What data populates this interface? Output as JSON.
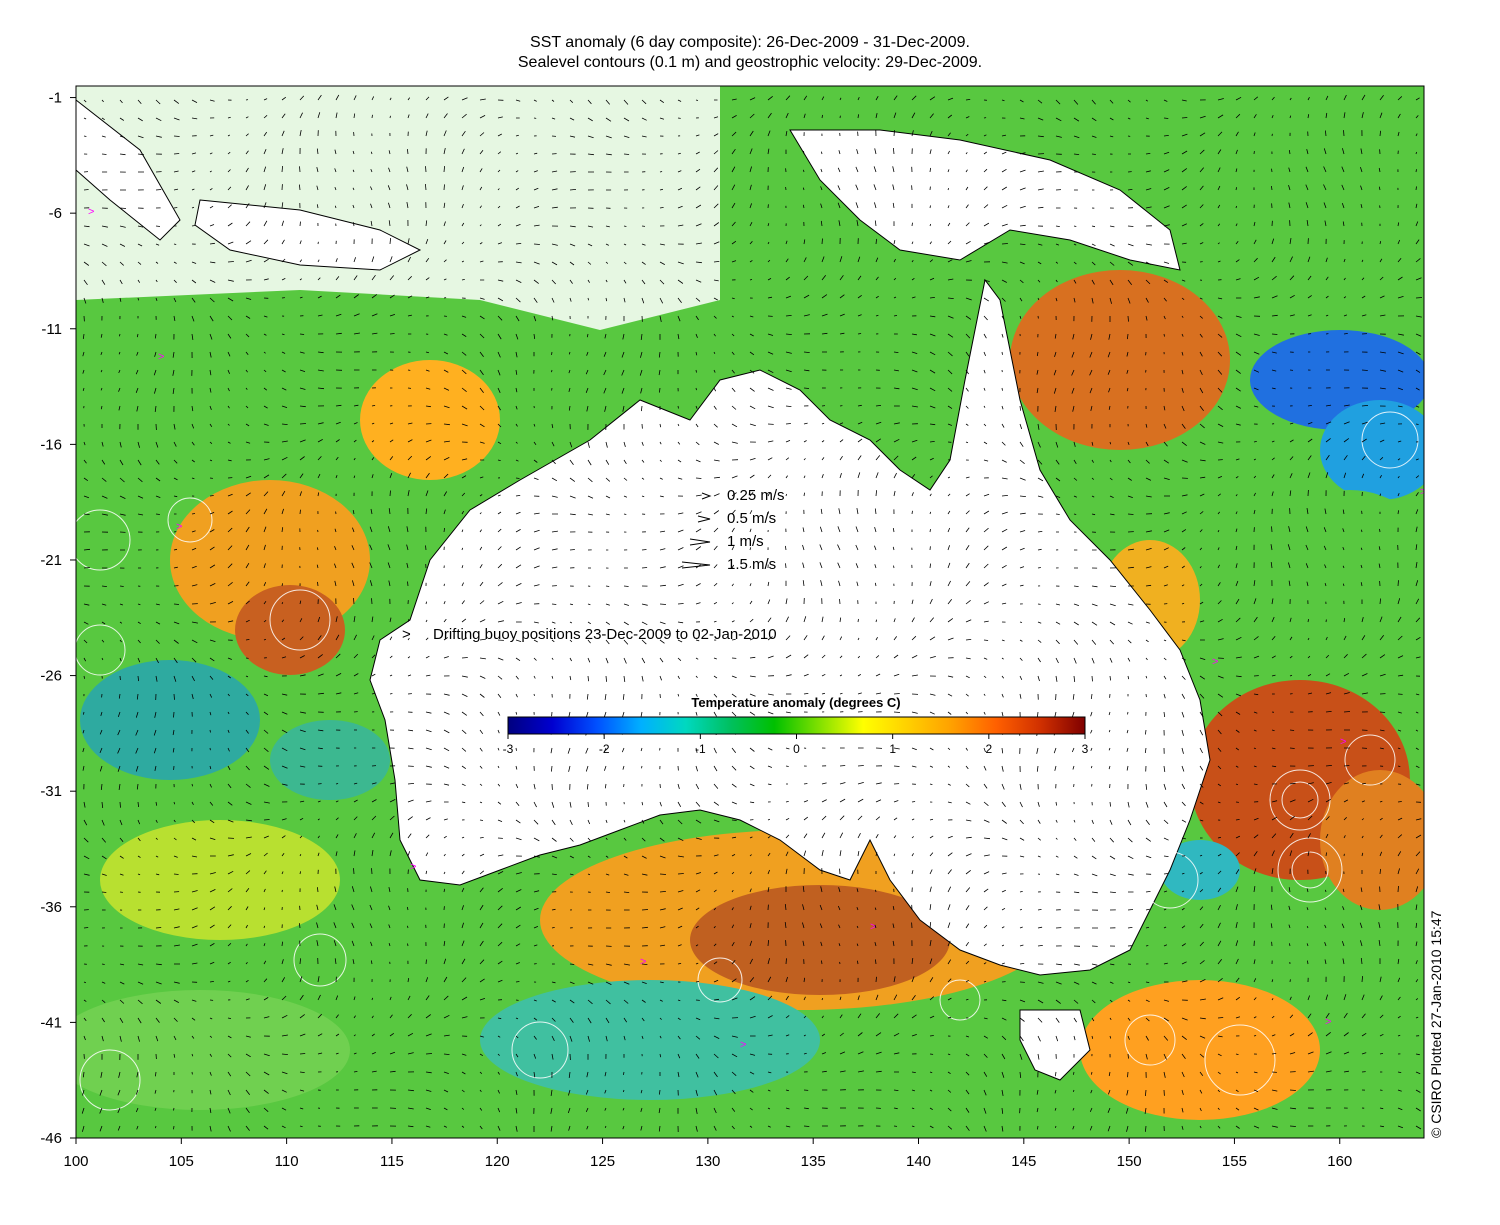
{
  "title": {
    "line1": "SST anomaly (6 day composite): 26-Dec-2009 - 31-Dec-2009.",
    "line2": "Sealevel contours (0.1 m) and geostrophic velocity: 29-Dec-2009."
  },
  "axes": {
    "lon_range": [
      100,
      164
    ],
    "lat_range": [
      -46,
      -0.5
    ],
    "x_ticks": [
      100,
      105,
      110,
      115,
      120,
      125,
      130,
      135,
      140,
      145,
      150,
      155,
      160
    ],
    "y_ticks": [
      -1,
      -6,
      -11,
      -16,
      -21,
      -26,
      -31,
      -36,
      -41,
      -46
    ]
  },
  "velocity_legend": [
    {
      "label": "0.25 m/s",
      "speed": 0.25
    },
    {
      "label": "0.5 m/s",
      "speed": 0.5
    },
    {
      "label": "1 m/s",
      "speed": 1
    },
    {
      "label": "1.5 m/s",
      "speed": 1.5
    }
  ],
  "buoy_legend": {
    "label": "Drifting buoy positions 23-Dec-2009 to 02-Jan-2010",
    "color": "#ff00ff"
  },
  "colorbar": {
    "title": "Temperature anomaly (degrees C)",
    "ticks": [
      -3,
      -2,
      -1,
      0,
      1,
      2,
      3
    ],
    "range": [
      -3,
      3
    ],
    "colors": [
      "#00007f",
      "#0000d0",
      "#0050ff",
      "#00b0ff",
      "#00d8c0",
      "#00c060",
      "#00c000",
      "#7fe000",
      "#ffff00",
      "#ffd000",
      "#ffa000",
      "#ff6000",
      "#d03000",
      "#7f0000"
    ]
  },
  "credit": "© CSIRO Plotted 27-Jan-2010 15:47",
  "colors": {
    "land": "#ffffff",
    "coast": "#000000",
    "contour": "#ffffff",
    "arrow": "#000000"
  }
}
